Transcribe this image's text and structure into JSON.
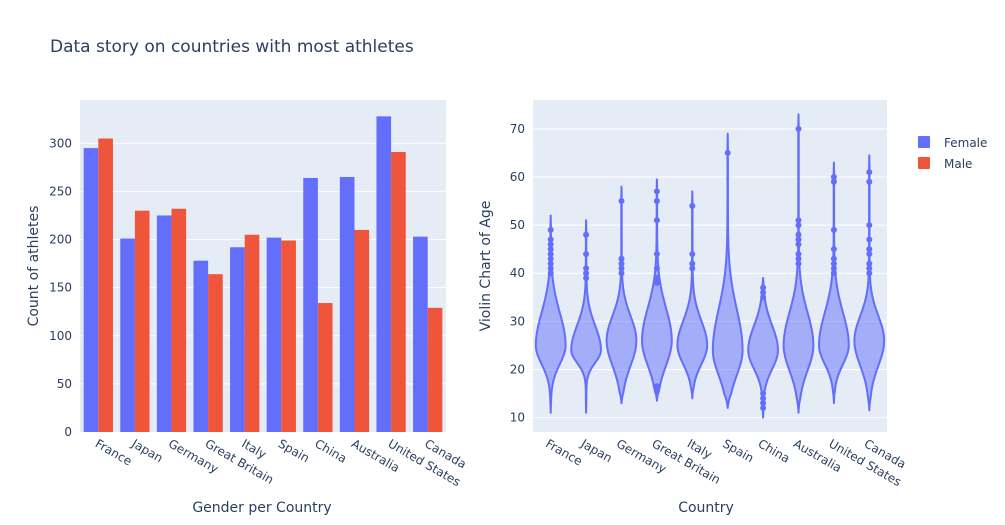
{
  "title": "Data story on countries with most athletes",
  "colors": {
    "female": "#636efa",
    "male": "#ef553b",
    "plot_bg": "#e5ecf6",
    "grid": "#ffffff",
    "text": "#2a3f5f"
  },
  "legend": {
    "placement": "top-right",
    "items": [
      {
        "label": "Female",
        "color": "#636efa"
      },
      {
        "label": "Male",
        "color": "#ef553b"
      }
    ]
  },
  "chart_data": [
    {
      "type": "bar",
      "xlabel": "Gender per Country",
      "ylabel": "Count of athletes",
      "ylim": [
        0,
        345
      ],
      "yticks": [
        0,
        50,
        100,
        150,
        200,
        250,
        300
      ],
      "categories": [
        "France",
        "Japan",
        "Germany",
        "Great Britain",
        "Italy",
        "Spain",
        "China",
        "Australia",
        "United States",
        "Canada"
      ],
      "series": [
        {
          "name": "Female",
          "color": "#636efa",
          "values": [
            295,
            201,
            225,
            178,
            192,
            202,
            264,
            265,
            328,
            203
          ]
        },
        {
          "name": "Male",
          "color": "#ef553b",
          "values": [
            305,
            230,
            232,
            164,
            205,
            199,
            134,
            210,
            291,
            129
          ]
        }
      ]
    },
    {
      "type": "violin",
      "xlabel": "Country",
      "ylabel": "Violin Chart of Age",
      "ylim": [
        7,
        76
      ],
      "yticks": [
        10,
        20,
        30,
        40,
        50,
        60,
        70
      ],
      "categories": [
        "France",
        "Japan",
        "Germany",
        "Great Britain",
        "Italy",
        "Spain",
        "China",
        "Australia",
        "United States",
        "Canada"
      ],
      "series": [
        {
          "name": "Female",
          "color": "#636efa",
          "violins": [
            {
              "min": 11,
              "max": 52,
              "median": 26,
              "q1": 23,
              "q3": 30,
              "outliers": [
                40,
                41,
                42,
                43,
                44,
                45,
                46,
                47,
                49
              ]
            },
            {
              "min": 11,
              "max": 51,
              "median": 25,
              "q1": 23,
              "q3": 28,
              "outliers": [
                39,
                40,
                41,
                44,
                48
              ]
            },
            {
              "min": 13,
              "max": 58,
              "median": 27,
              "q1": 23,
              "q3": 30,
              "outliers": [
                40,
                41,
                42,
                43,
                55
              ]
            },
            {
              "min": 13.5,
              "max": 59.5,
              "median": 27,
              "q1": 23,
              "q3": 31,
              "outliers": [
                15.5,
                16.5,
                38,
                39,
                41,
                44,
                51,
                55,
                57
              ]
            },
            {
              "min": 14,
              "max": 57,
              "median": 26,
              "q1": 23,
              "q3": 29,
              "outliers": [
                41,
                42,
                44,
                54
              ]
            },
            {
              "min": 12,
              "max": 69,
              "median": 25,
              "q1": 21,
              "q3": 30,
              "outliers": [
                65
              ]
            },
            {
              "min": 10,
              "max": 39,
              "median": 25,
              "q1": 22,
              "q3": 28,
              "outliers": [
                12,
                13,
                14,
                15,
                35,
                36,
                37
              ]
            },
            {
              "min": 11,
              "max": 73,
              "median": 26,
              "q1": 22,
              "q3": 30,
              "outliers": [
                42,
                43,
                44,
                46,
                47,
                48,
                50,
                51,
                70
              ]
            },
            {
              "min": 13,
              "max": 63,
              "median": 26,
              "q1": 23,
              "q3": 30,
              "outliers": [
                40,
                41,
                42,
                43,
                45,
                49,
                59,
                60
              ]
            },
            {
              "min": 11.5,
              "max": 64.5,
              "median": 27,
              "q1": 23,
              "q3": 30,
              "outliers": [
                40,
                41,
                42,
                44,
                45,
                47,
                50,
                59,
                61
              ]
            }
          ]
        }
      ]
    }
  ]
}
